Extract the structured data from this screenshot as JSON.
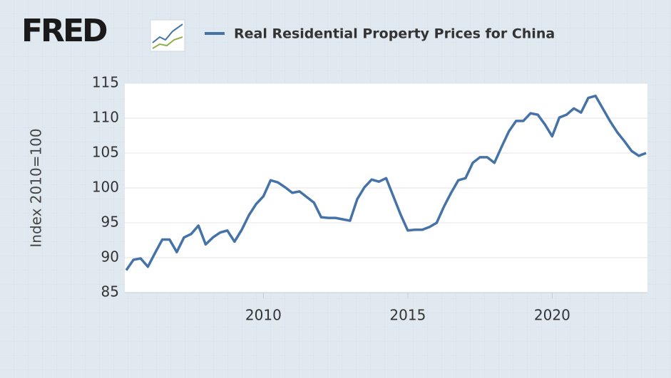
{
  "logo": "FRED",
  "chart_data": {
    "type": "line",
    "y_label": "Index 2010=100",
    "x": [
      2005.25,
      2005.5,
      2005.75,
      2006,
      2006.25,
      2006.5,
      2006.75,
      2007,
      2007.25,
      2007.5,
      2007.75,
      2008,
      2008.25,
      2008.5,
      2008.75,
      2009,
      2009.25,
      2009.5,
      2009.75,
      2010,
      2010.25,
      2010.5,
      2010.75,
      2011,
      2011.25,
      2011.5,
      2011.75,
      2012,
      2012.25,
      2012.5,
      2012.75,
      2013,
      2013.25,
      2013.5,
      2013.75,
      2014,
      2014.25,
      2014.5,
      2014.75,
      2015,
      2015.25,
      2015.5,
      2015.75,
      2016,
      2016.25,
      2016.5,
      2016.75,
      2017,
      2017.25,
      2017.5,
      2017.75,
      2018,
      2018.25,
      2018.5,
      2018.75,
      2019,
      2019.25,
      2019.5,
      2019.75,
      2020,
      2020.25,
      2020.5,
      2020.75,
      2021,
      2021.25,
      2021.5,
      2021.75,
      2022,
      2022.25,
      2022.5,
      2022.75,
      2023,
      2023.25
    ],
    "series": [
      {
        "name": "Real Residential Property Prices for China",
        "color": "#4572a7",
        "values": [
          88.2,
          89.7,
          89.9,
          88.7,
          90.7,
          92.6,
          92.6,
          90.8,
          92.9,
          93.4,
          94.6,
          91.9,
          92.9,
          93.6,
          93.9,
          92.3,
          94.0,
          96.1,
          97.7,
          98.8,
          101.1,
          100.8,
          100.1,
          99.3,
          99.5,
          98.7,
          97.9,
          95.8,
          95.7,
          95.7,
          95.5,
          95.3,
          98.4,
          100.1,
          101.2,
          100.9,
          101.4,
          98.8,
          96.2,
          93.9,
          94.0,
          94.0,
          94.4,
          95.0,
          97.3,
          99.3,
          101.1,
          101.4,
          103.6,
          104.4,
          104.4,
          103.6,
          105.9,
          108.1,
          109.6,
          109.6,
          110.7,
          110.5,
          109.1,
          107.4,
          110.1,
          110.5,
          111.4,
          110.8,
          112.9,
          113.2,
          111.4,
          109.6,
          108.0,
          106.7,
          105.3,
          104.6,
          105.0
        ]
      }
    ],
    "xlim": [
      2005.2,
      2023.3
    ],
    "xticks": [
      2010,
      2015,
      2020
    ],
    "ylim": [
      85,
      115
    ],
    "yticks": [
      85,
      90,
      95,
      100,
      105,
      110,
      115
    ],
    "grid": true
  }
}
